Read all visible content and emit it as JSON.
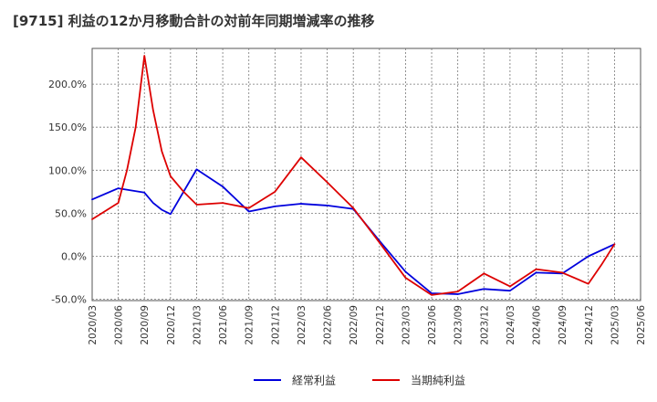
{
  "chart_data": {
    "type": "line",
    "title": "[9715]  利益の12か月移動合計の対前年同期増減率の推移",
    "xlabel": "",
    "ylabel": "",
    "ylim": [
      -50,
      250
    ],
    "yticks": [
      -50,
      0,
      50,
      100,
      150,
      200
    ],
    "ytick_labels": [
      "-50.0%",
      "0.0%",
      "50.0%",
      "100.0%",
      "150.0%",
      "200.0%"
    ],
    "categories": [
      "2020/03",
      "2020/06",
      "2020/09",
      "2020/12",
      "2021/03",
      "2021/06",
      "2021/09",
      "2021/12",
      "2022/03",
      "2022/06",
      "2022/09",
      "2022/12",
      "2023/03",
      "2023/06",
      "2023/09",
      "2023/12",
      "2024/03",
      "2024/06",
      "2024/09",
      "2024/12",
      "2025/03",
      "2025/06"
    ],
    "grid": true,
    "legend_position": "bottom",
    "series": [
      {
        "name": "経常利益",
        "color": "#0000dd",
        "points": [
          {
            "x": 0,
            "y": 66
          },
          {
            "x": 1,
            "y": 79
          },
          {
            "x": 2,
            "y": 74
          },
          {
            "x": 2.333,
            "y": 62
          },
          {
            "x": 2.667,
            "y": 54
          },
          {
            "x": 3,
            "y": 49
          },
          {
            "x": 4,
            "y": 101
          },
          {
            "x": 5,
            "y": 81
          },
          {
            "x": 6,
            "y": 52
          },
          {
            "x": 7,
            "y": 58
          },
          {
            "x": 8,
            "y": 61
          },
          {
            "x": 9,
            "y": 59
          },
          {
            "x": 10,
            "y": 55
          },
          {
            "x": 11,
            "y": 18
          },
          {
            "x": 12,
            "y": -18
          },
          {
            "x": 13,
            "y": -43
          },
          {
            "x": 14,
            "y": -44
          },
          {
            "x": 15,
            "y": -38
          },
          {
            "x": 16,
            "y": -40
          },
          {
            "x": 17,
            "y": -19
          },
          {
            "x": 18,
            "y": -20
          },
          {
            "x": 19,
            "y": 0
          },
          {
            "x": 20,
            "y": 14
          }
        ]
      },
      {
        "name": "当期純利益",
        "color": "#dd0000",
        "points": [
          {
            "x": 0,
            "y": 43
          },
          {
            "x": 1,
            "y": 62
          },
          {
            "x": 1.333,
            "y": 100
          },
          {
            "x": 1.667,
            "y": 150
          },
          {
            "x": 2,
            "y": 233
          },
          {
            "x": 2.333,
            "y": 170
          },
          {
            "x": 2.667,
            "y": 122
          },
          {
            "x": 3,
            "y": 93
          },
          {
            "x": 3.5,
            "y": 75
          },
          {
            "x": 4,
            "y": 60
          },
          {
            "x": 5,
            "y": 62
          },
          {
            "x": 6,
            "y": 56
          },
          {
            "x": 7,
            "y": 75
          },
          {
            "x": 8,
            "y": 115
          },
          {
            "x": 9,
            "y": 86
          },
          {
            "x": 10,
            "y": 56
          },
          {
            "x": 11,
            "y": 16
          },
          {
            "x": 12,
            "y": -25
          },
          {
            "x": 13,
            "y": -45
          },
          {
            "x": 14,
            "y": -41
          },
          {
            "x": 15,
            "y": -20
          },
          {
            "x": 16,
            "y": -35
          },
          {
            "x": 17,
            "y": -15
          },
          {
            "x": 18,
            "y": -19
          },
          {
            "x": 19,
            "y": -32
          },
          {
            "x": 19.5,
            "y": -10
          },
          {
            "x": 20,
            "y": 14
          }
        ]
      }
    ]
  }
}
